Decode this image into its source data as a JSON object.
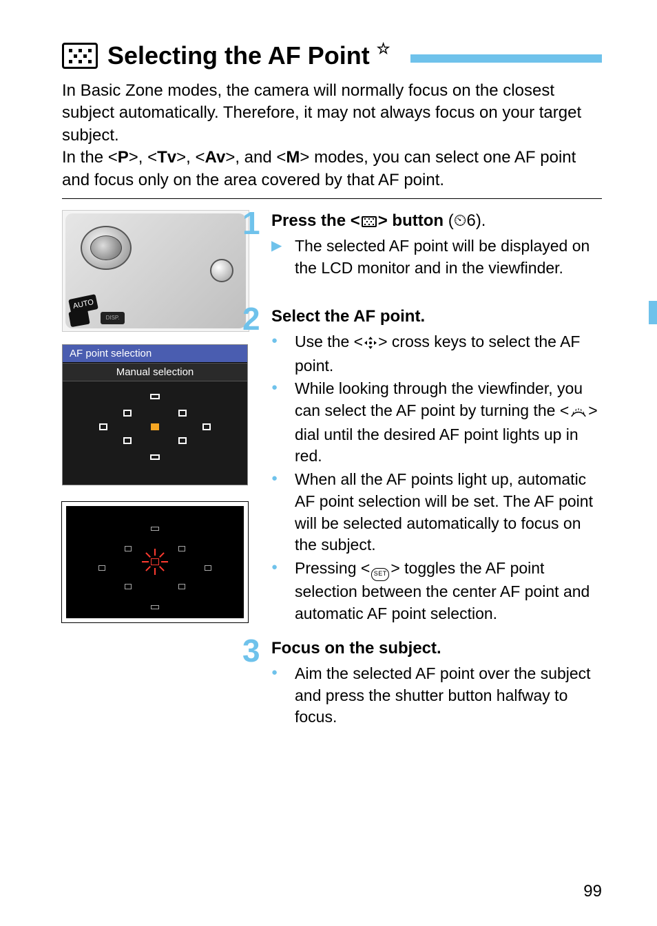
{
  "page": {
    "number": "99",
    "title": "Selecting the AF Point",
    "title_star": "☆",
    "accent_color": "#6fc2eb",
    "text_color": "#000000",
    "bg_color": "#ffffff"
  },
  "intro": {
    "p1": "In Basic Zone modes, the camera will normally focus on the closest subject automatically. Therefore, it may not always focus on your target subject.",
    "p2_a": "In the <",
    "mode_p": "P",
    "p2_b": ">, <",
    "mode_tv": "Tv",
    "p2_c": ">, <",
    "mode_av": "Av",
    "p2_d": ">, and <",
    "mode_m": "M",
    "p2_e": "> modes, you can select one AF point and focus only on the area covered by that AF point."
  },
  "lcd": {
    "title": "AF point selection",
    "subtitle": "Manual selection",
    "title_bg": "#4a5db0",
    "bg": "#1a1a1a",
    "point_color": "#ffffff",
    "center_color": "#f5a623",
    "points": [
      {
        "x": 50,
        "y": 18,
        "shape": "h"
      },
      {
        "x": 35,
        "y": 38,
        "shape": "v"
      },
      {
        "x": 65,
        "y": 38,
        "shape": "v"
      },
      {
        "x": 22,
        "y": 55,
        "shape": "v"
      },
      {
        "x": 50,
        "y": 55,
        "shape": "center"
      },
      {
        "x": 78,
        "y": 55,
        "shape": "v"
      },
      {
        "x": 35,
        "y": 72,
        "shape": "v"
      },
      {
        "x": 65,
        "y": 72,
        "shape": "v"
      },
      {
        "x": 50,
        "y": 92,
        "shape": "h"
      }
    ]
  },
  "viewfinder": {
    "bg": "#000000",
    "point_color": "#aaaaaa",
    "highlight_color": "#ff3b30",
    "points": [
      {
        "x": 50,
        "y": 20,
        "shape": "h"
      },
      {
        "x": 35,
        "y": 38,
        "shape": "v"
      },
      {
        "x": 65,
        "y": 38,
        "shape": "v"
      },
      {
        "x": 20,
        "y": 55,
        "shape": "v"
      },
      {
        "x": 80,
        "y": 55,
        "shape": "v"
      },
      {
        "x": 35,
        "y": 72,
        "shape": "v"
      },
      {
        "x": 65,
        "y": 72,
        "shape": "v"
      },
      {
        "x": 50,
        "y": 90,
        "shape": "h"
      }
    ]
  },
  "camera": {
    "mode_label": "AUTO",
    "disp_label": "DISP."
  },
  "steps": {
    "s1": {
      "num": "1",
      "head_a": "Press the <",
      "head_b": "> button",
      "head_c": " (",
      "timer": "⏲6",
      "head_d": ").",
      "b1": "The selected AF point will be displayed on the LCD monitor and in the viewfinder."
    },
    "s2": {
      "num": "2",
      "head": "Select the AF point.",
      "b1_a": "Use the <",
      "b1_b": "> cross keys to select the AF point.",
      "b2_a": "While looking through the viewfinder, you can select the AF point by turning the <",
      "b2_b": "> dial until the desired AF point lights up in red.",
      "b3": "When all the AF points light up, automatic AF point selection will be set. The AF point will be selected automatically to focus on the subject.",
      "b4_a": "Pressing <",
      "set_label": "SET",
      "b4_b": "> toggles the AF point selection between the center AF point and automatic AF point selection."
    },
    "s3": {
      "num": "3",
      "head": "Focus on the subject.",
      "b1": "Aim the selected AF point over the subject and press the shutter button halfway to focus."
    }
  }
}
